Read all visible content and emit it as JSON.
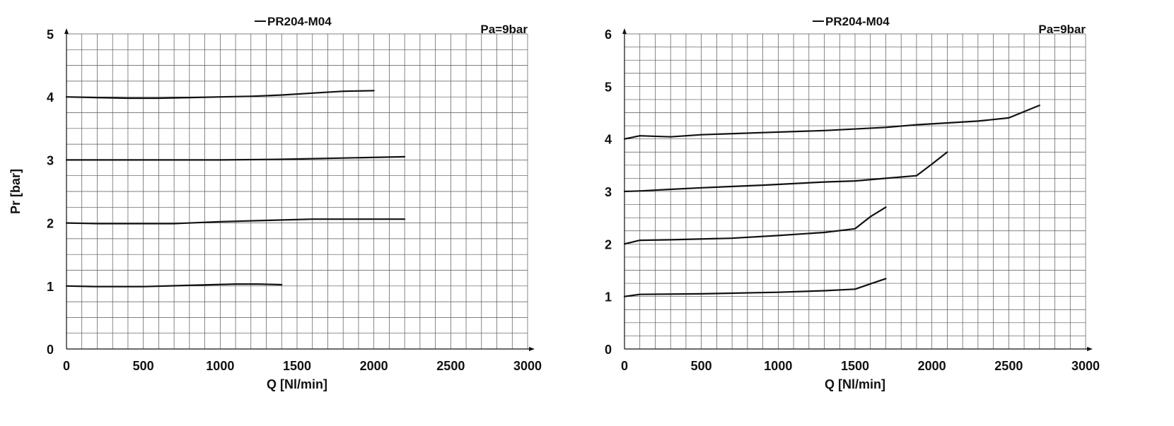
{
  "chart_data": [
    {
      "type": "line",
      "legend": "PR204-M04",
      "annotation": "Pa=9bar",
      "xlabel": "Q [Nl/min]",
      "ylabel": "Pr [bar]",
      "xlim": [
        0,
        3000
      ],
      "ylim": [
        0,
        5
      ],
      "xticks": [
        0,
        500,
        1000,
        1500,
        2000,
        2500,
        3000
      ],
      "yticks": [
        0,
        1,
        2,
        3,
        4,
        5
      ],
      "grid": true,
      "line_color": "#111111",
      "series": [
        {
          "x": [
            0,
            200,
            400,
            600,
            800,
            1000,
            1200,
            1400,
            1600,
            1800,
            2000
          ],
          "y": [
            4.0,
            3.99,
            3.98,
            3.98,
            3.99,
            4.0,
            4.01,
            4.03,
            4.06,
            4.09,
            4.1
          ]
        },
        {
          "x": [
            0,
            500,
            1000,
            1400,
            1800,
            2200
          ],
          "y": [
            3.0,
            3.0,
            3.0,
            3.01,
            3.03,
            3.05
          ]
        },
        {
          "x": [
            0,
            200,
            700,
            1000,
            1300,
            1600,
            1800,
            2200
          ],
          "y": [
            2.0,
            1.99,
            1.99,
            2.02,
            2.04,
            2.06,
            2.06,
            2.06
          ]
        },
        {
          "x": [
            0,
            200,
            500,
            800,
            1100,
            1250,
            1400
          ],
          "y": [
            1.0,
            0.99,
            0.99,
            1.01,
            1.03,
            1.03,
            1.02
          ]
        }
      ]
    },
    {
      "type": "line",
      "legend": "PR204-M04",
      "annotation": "Pa=9bar",
      "xlabel": "Q [Nl/min]",
      "ylabel": "Pr [bar]",
      "xlim": [
        0,
        3000
      ],
      "ylim": [
        0,
        6
      ],
      "xticks": [
        0,
        500,
        1000,
        1500,
        2000,
        2500,
        3000
      ],
      "yticks": [
        0,
        1,
        2,
        3,
        4,
        5,
        6
      ],
      "grid": true,
      "line_color": "#111111",
      "series": [
        {
          "x": [
            0,
            100,
            300,
            500,
            900,
            1300,
            1700,
            1900,
            2300,
            2500,
            2600,
            2700
          ],
          "y": [
            4.0,
            4.06,
            4.04,
            4.08,
            4.12,
            4.16,
            4.22,
            4.27,
            4.34,
            4.4,
            4.52,
            4.64
          ]
        },
        {
          "x": [
            0,
            100,
            300,
            500,
            900,
            1300,
            1500,
            1700,
            1900,
            2000,
            2100
          ],
          "y": [
            3.0,
            3.01,
            3.04,
            3.07,
            3.12,
            3.18,
            3.2,
            3.25,
            3.3,
            3.52,
            3.75
          ]
        },
        {
          "x": [
            0,
            100,
            300,
            700,
            1000,
            1300,
            1500,
            1600,
            1700
          ],
          "y": [
            2.0,
            2.07,
            2.08,
            2.11,
            2.16,
            2.22,
            2.29,
            2.52,
            2.7
          ]
        },
        {
          "x": [
            0,
            100,
            500,
            1000,
            1300,
            1500,
            1600,
            1700
          ],
          "y": [
            1.0,
            1.04,
            1.05,
            1.08,
            1.11,
            1.14,
            1.24,
            1.34
          ]
        }
      ]
    }
  ]
}
